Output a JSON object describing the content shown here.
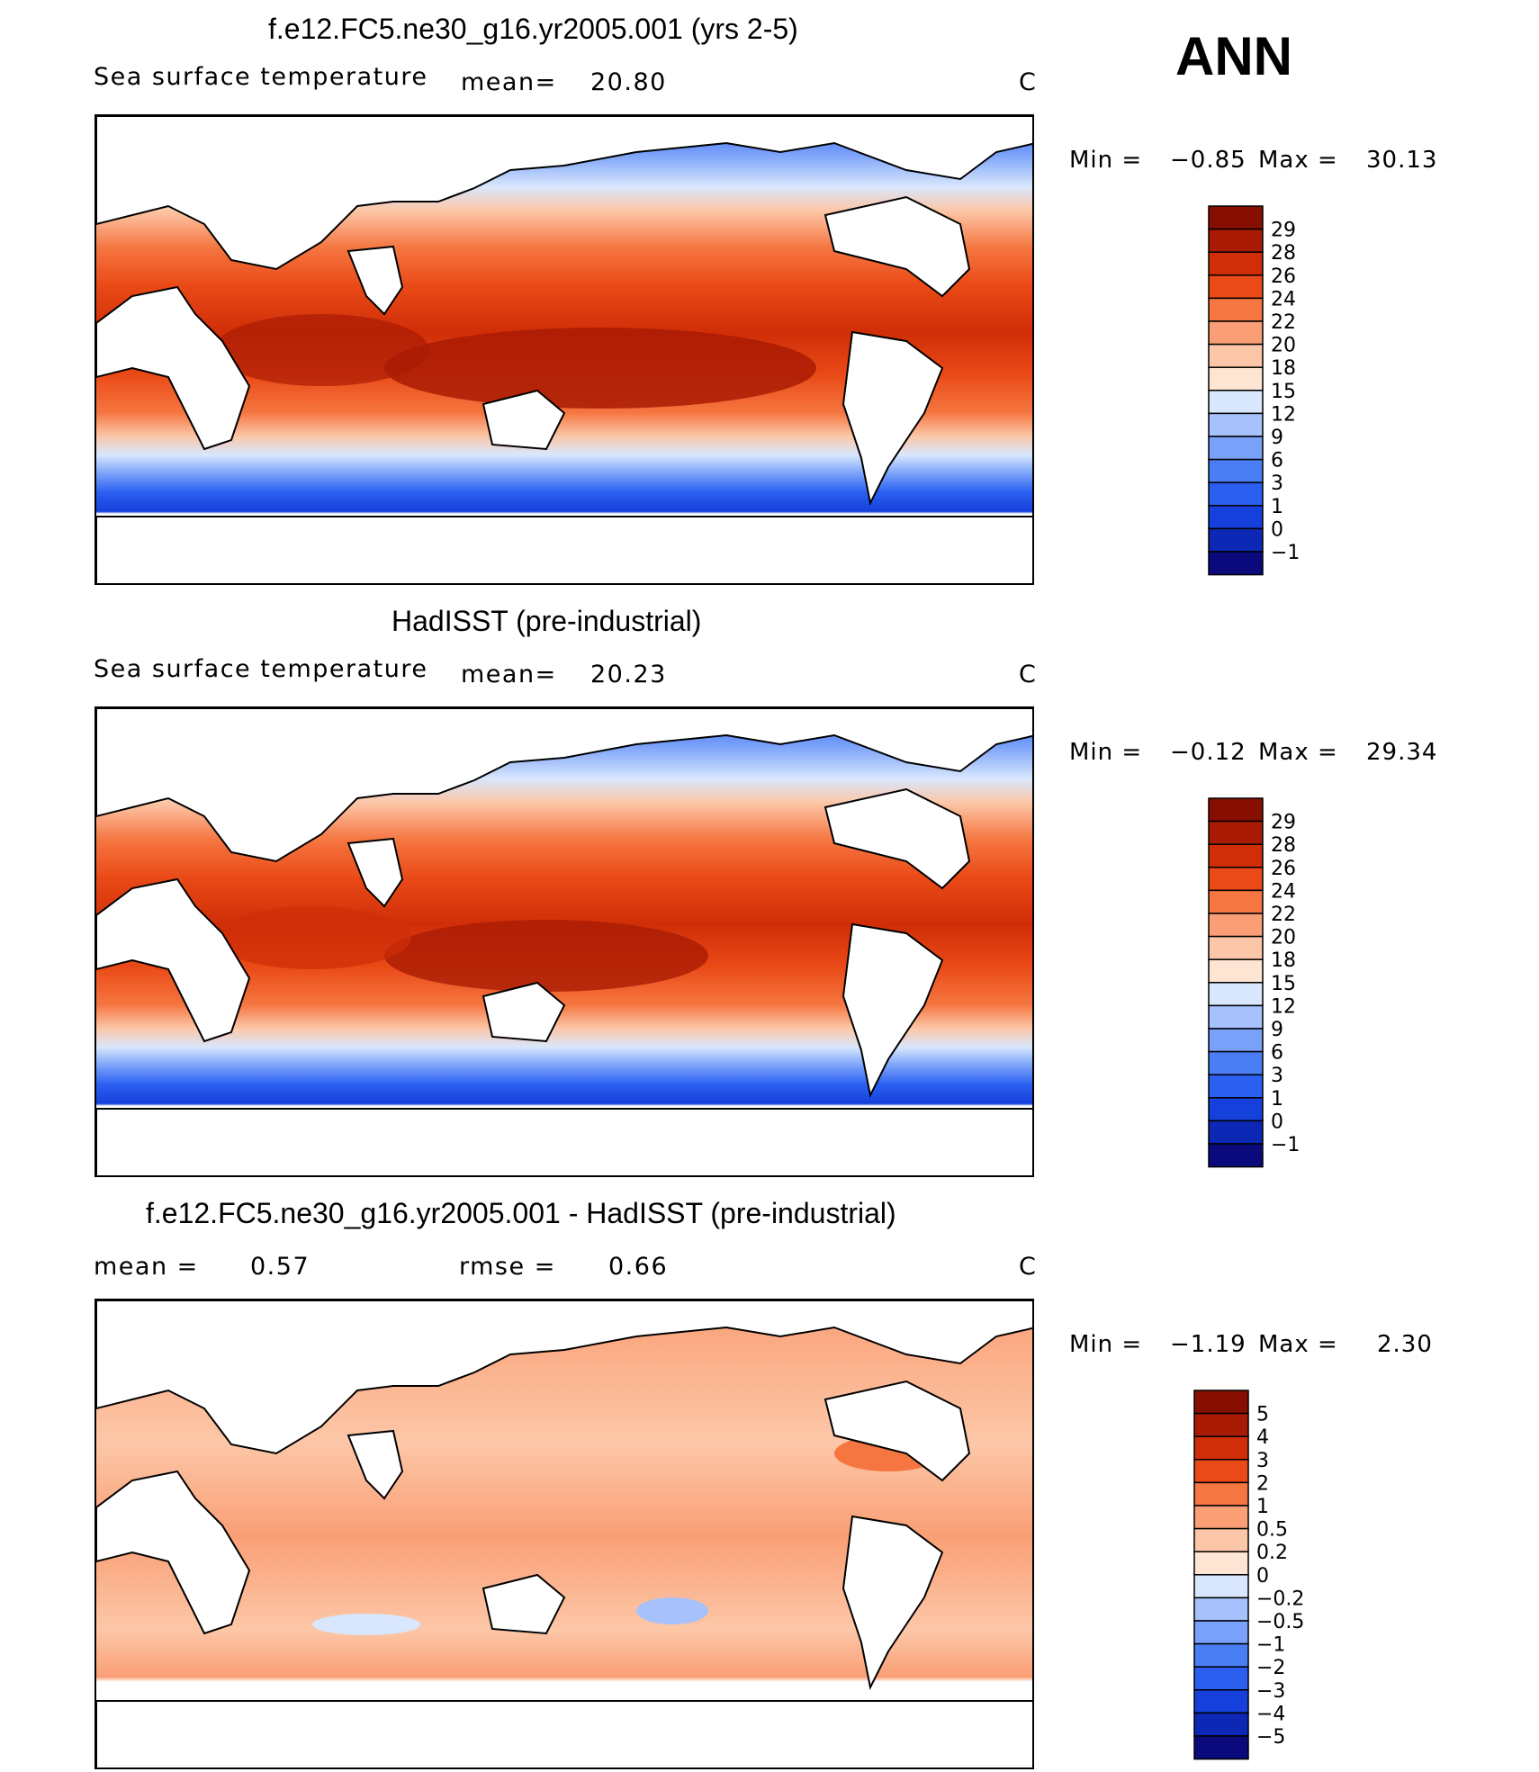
{
  "header": {
    "season": "ANN"
  },
  "panels": [
    {
      "title": "f.e12.FC5.ne30_g16.yr2005.001 (yrs 2-5)",
      "variable": "Sea surface temperature",
      "mean_label": "mean=",
      "mean_value": "20.80",
      "units": "C",
      "min_label": "Min =",
      "min_value": "−0.85",
      "max_label": "Max =",
      "max_value": "30.13",
      "colorbar_levels": [
        "29",
        "28",
        "26",
        "24",
        "22",
        "20",
        "18",
        "15",
        "12",
        "9",
        "6",
        "3",
        "1",
        "0",
        "−1"
      ]
    },
    {
      "title": "HadISST (pre-industrial)",
      "variable": "Sea surface temperature",
      "mean_label": "mean=",
      "mean_value": "20.23",
      "units": "C",
      "min_label": "Min =",
      "min_value": "−0.12",
      "max_label": "Max =",
      "max_value": "29.34",
      "colorbar_levels": [
        "29",
        "28",
        "26",
        "24",
        "22",
        "20",
        "18",
        "15",
        "12",
        "9",
        "6",
        "3",
        "1",
        "0",
        "−1"
      ]
    },
    {
      "title": "f.e12.FC5.ne30_g16.yr2005.001 - HadISST (pre-industrial)",
      "mean_label": "mean =",
      "mean_value": "0.57",
      "rmse_label": "rmse =",
      "rmse_value": "0.66",
      "units": "C",
      "min_label": "Min =",
      "min_value": "−1.19",
      "max_label": "Max =",
      "max_value": "2.30",
      "colorbar_levels": [
        "5",
        "4",
        "3",
        "2",
        "1",
        "0.5",
        "0.2",
        "0",
        "−0.2",
        "−0.5",
        "−1",
        "−2",
        "−3",
        "−4",
        "−5"
      ]
    }
  ],
  "chart_data": [
    {
      "type": "heatmap",
      "title": "f.e12.FC5.ne30_g16.yr2005.001 (yrs 2-5)",
      "variable": "Sea surface temperature",
      "units": "C",
      "mean": 20.8,
      "min": -0.85,
      "max": 30.13,
      "levels": [
        -1,
        0,
        1,
        3,
        6,
        9,
        12,
        15,
        18,
        20,
        22,
        24,
        26,
        28,
        29
      ],
      "colors": [
        "#0a0a7d",
        "#0d28b4",
        "#1540dc",
        "#2a5ff0",
        "#4a7ef5",
        "#7aa1fa",
        "#a6c1fb",
        "#d8e7fd",
        "#fde4d3",
        "#fcc7a8",
        "#fa9f75",
        "#f57641",
        "#ea4a17",
        "#cf2e08",
        "#a91b04",
        "#860f02"
      ],
      "description_levels_note": "filled contour map of annual mean SST"
    },
    {
      "type": "heatmap",
      "title": "HadISST (pre-industrial)",
      "variable": "Sea surface temperature",
      "units": "C",
      "mean": 20.23,
      "min": -0.12,
      "max": 29.34,
      "levels": [
        -1,
        0,
        1,
        3,
        6,
        9,
        12,
        15,
        18,
        20,
        22,
        24,
        26,
        28,
        29
      ],
      "colors": [
        "#0a0a7d",
        "#0d28b4",
        "#1540dc",
        "#2a5ff0",
        "#4a7ef5",
        "#7aa1fa",
        "#a6c1fb",
        "#d8e7fd",
        "#fde4d3",
        "#fcc7a8",
        "#fa9f75",
        "#f57641",
        "#ea4a17",
        "#cf2e08",
        "#a91b04",
        "#860f02"
      ]
    },
    {
      "type": "heatmap",
      "title": "f.e12.FC5.ne30_g16.yr2005.001 - HadISST (pre-industrial)",
      "units": "C",
      "mean": 0.57,
      "rmse": 0.66,
      "min": -1.19,
      "max": 2.3,
      "levels": [
        -5,
        -4,
        -3,
        -2,
        -1,
        -0.5,
        -0.2,
        0,
        0.2,
        0.5,
        1,
        2,
        3,
        4,
        5
      ],
      "colors": [
        "#0a0a7d",
        "#0d28b4",
        "#1540dc",
        "#2a5ff0",
        "#4a7ef5",
        "#7aa1fa",
        "#a6c1fb",
        "#d8e7fd",
        "#fde4d3",
        "#fcc7a8",
        "#fa9f75",
        "#f57641",
        "#ea4a17",
        "#cf2e08",
        "#a91b04",
        "#860f02"
      ]
    }
  ]
}
